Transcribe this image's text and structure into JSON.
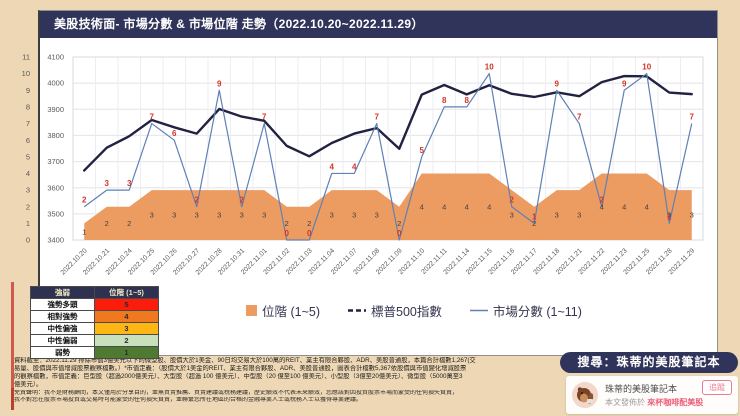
{
  "chart_card": {
    "title": "美股技術面- 市場分數 & 市場位階 走勢（2022.10.20~2022.11.29）"
  },
  "chart_data": {
    "type": "line",
    "title": "美股技術面- 市場分數 & 市場位階 走勢（2022.10.20~2022.11.29）",
    "x": [
      "2022.10.20",
      "2022.10.21",
      "2022.10.24",
      "2022.10.25",
      "2022.10.26",
      "2022.10.27",
      "2022.10.28",
      "2022.10.31",
      "2022.11.01",
      "2022.11.02",
      "2022.11.03",
      "2022.11.04",
      "2022.11.07",
      "2022.11.08",
      "2022.11.09",
      "2022.11.10",
      "2022.11.11",
      "2022.11.14",
      "2022.11.15",
      "2022.11.16",
      "2022.11.17",
      "2022.11.18",
      "2022.11.21",
      "2022.11.22",
      "2022.11.23",
      "2022.11.25",
      "2022.11.28",
      "2022.11.29"
    ],
    "series": [
      {
        "name": "位階 (1~5)",
        "type": "area",
        "axis": "score",
        "color": "#ec9c61",
        "label_color": "#404040",
        "values": [
          1,
          2,
          2,
          3,
          3,
          3,
          3,
          3,
          3,
          2,
          2,
          3,
          3,
          3,
          2,
          4,
          4,
          4,
          4,
          3,
          2,
          3,
          3,
          4,
          4,
          4,
          3,
          3
        ]
      },
      {
        "name": "標普500指數",
        "type": "line",
        "axis": "sp500",
        "color": "#212142",
        "values": [
          3666,
          3753,
          3797,
          3859,
          3831,
          3807,
          3901,
          3872,
          3856,
          3760,
          3720,
          3771,
          3807,
          3828,
          3749,
          3956,
          3993,
          3957,
          3992,
          3959,
          3947,
          3965,
          3950,
          4004,
          4027,
          4026,
          3964,
          3958
        ]
      },
      {
        "name": "市場分數 (1~11)",
        "type": "line",
        "axis": "score",
        "color": "#5f80b5",
        "label_color": "#d43425",
        "values": [
          2,
          3,
          3,
          7,
          6,
          2,
          9,
          2,
          7,
          0,
          0,
          4,
          4,
          7,
          0,
          5,
          8,
          8,
          10,
          2,
          1,
          9,
          7,
          2,
          9,
          10,
          1,
          7
        ]
      }
    ],
    "axes": {
      "score": {
        "min": 0,
        "max": 11,
        "tick_step": 1,
        "ticks": [
          0,
          1,
          2,
          3,
          4,
          5,
          6,
          7,
          8,
          9,
          10,
          11
        ]
      },
      "sp500": {
        "min": 3400,
        "max": 4100,
        "tick_step": 100,
        "ticks": [
          3400,
          3500,
          3600,
          3700,
          3800,
          3900,
          4000,
          4100
        ]
      }
    },
    "grid": true,
    "legend_position": "bottom"
  },
  "score_table": {
    "headers": [
      "強弱",
      "位階 (1~5)"
    ],
    "rows": [
      {
        "label": "強勢多頭",
        "value": "5",
        "color": "#fb1c0c"
      },
      {
        "label": "相對強勢",
        "value": "4",
        "color": "#f0781f"
      },
      {
        "label": "中性偏強",
        "value": "3",
        "color": "#fcb714"
      },
      {
        "label": "中性偏弱",
        "value": "2",
        "color": "#c8e0bb"
      },
      {
        "label": "弱勢",
        "value": "1",
        "color": "#4e7b31"
      }
    ]
  },
  "footnote": {
    "lines": [
      "資料截至：2022.11.29 排除市值3億美元以下的微型股、股價大於1美金、90日均交易大於100萬的REIT、業主有限合夥股、ADR、美股普通股，本篇合計檔數1,267(交",
      "易量、股價與市值增減股票觀察檔數。）*市值定義：（股價大於1美金的REIT、業主有限合夥股、ADR、美股普通股，圖表合計檔數5,367依股價與市值變化增減股票",
      "的觀察檔數，市值定義：巨型股（超過2000億美元）、大型股（超過 100 億美元）、中型股（20 億至100 億美元）、小型股（3億至20億美元）、微型股（5000萬至3",
      "億美元）。"
    ]
  },
  "disclaimer": {
    "lines": [
      "免責聲明：我不是財務顧問，本文僅用於分享目的，並無買賣推薦、買賣建議或稅務建議，歷史績效不代表未來績效，您應該對因投資股票市場而蒙受的任何損失負責，",
      "我不對您在股票市場投資或交易時可能蒙受的任何損失負責，並聯繫您所在地區的合格的金融專業人士或稅務人士以獲得專業建議。"
    ]
  },
  "search_badge": {
    "label": "搜尋：珠蒂的美股筆記本"
  },
  "profile_card": {
    "name": "珠蒂的美股筆記本",
    "follow_label": "追蹤",
    "published_prefix": "本文發佈於",
    "published_link": "來杯咖啡配美股"
  },
  "colors": {
    "page_bg": "#edd7b4",
    "navy": "#30345a",
    "area": "#ec9c61",
    "sp500_line": "#212142",
    "score_line": "#5f80b5",
    "score_label_red": "#d43425"
  }
}
